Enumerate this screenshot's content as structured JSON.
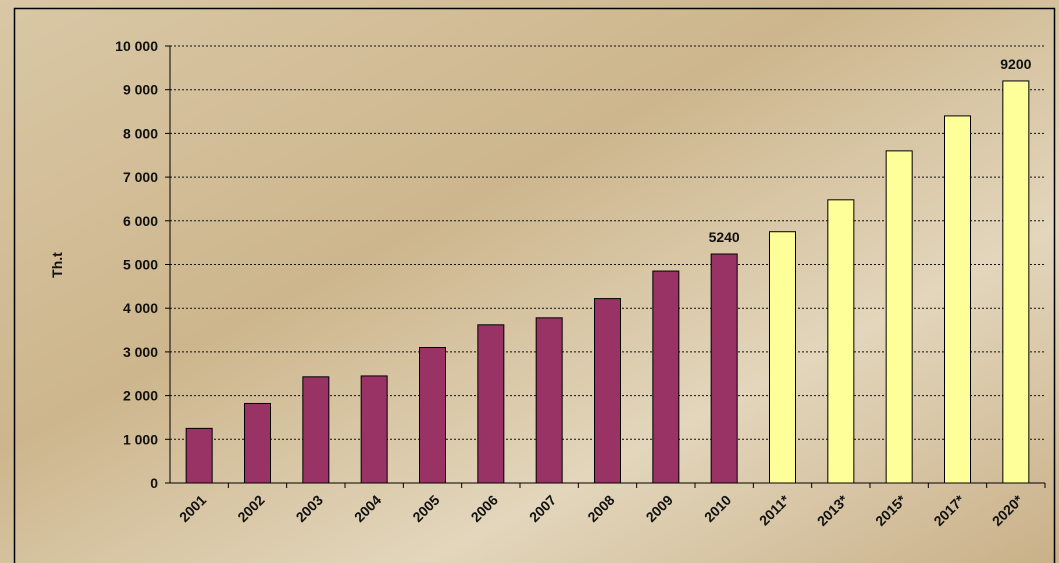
{
  "chart_data": {
    "type": "bar",
    "y_label": "Th.t",
    "categories": [
      "2001",
      "2002",
      "2003",
      "2004",
      "2005",
      "2006",
      "2007",
      "2008",
      "2009",
      "2010",
      "2011*",
      "2013*",
      "2015*",
      "2017*",
      "2020*"
    ],
    "values": [
      1250,
      1820,
      2430,
      2450,
      3100,
      3620,
      3780,
      4220,
      4850,
      5240,
      5750,
      6480,
      7600,
      8400,
      9200
    ],
    "value_labels": [
      null,
      null,
      null,
      null,
      null,
      null,
      null,
      null,
      null,
      "5240",
      null,
      null,
      null,
      null,
      "9200"
    ],
    "colors": [
      "#993366",
      "#993366",
      "#993366",
      "#993366",
      "#993366",
      "#993366",
      "#993366",
      "#993366",
      "#993366",
      "#993366",
      "#ffff99",
      "#ffff99",
      "#ffff99",
      "#ffff99",
      "#ffff99"
    ],
    "ylim": [
      0,
      10000
    ],
    "yticks": [
      0,
      {
        "value": 1000,
        "label": "1 000"
      },
      {
        "value": 2000,
        "label": "2 000"
      },
      {
        "value": 3000,
        "label": "3 000"
      },
      {
        "value": 4000,
        "label": "4 000"
      },
      {
        "value": 5000,
        "label": "5 000"
      },
      {
        "value": 6000,
        "label": "6 000"
      },
      {
        "value": 7000,
        "label": "7 000"
      },
      {
        "value": 8000,
        "label": "8 000"
      },
      {
        "value": 9000,
        "label": "9 000"
      },
      {
        "value": 10000,
        "label": "10 000"
      }
    ],
    "grid": true
  }
}
